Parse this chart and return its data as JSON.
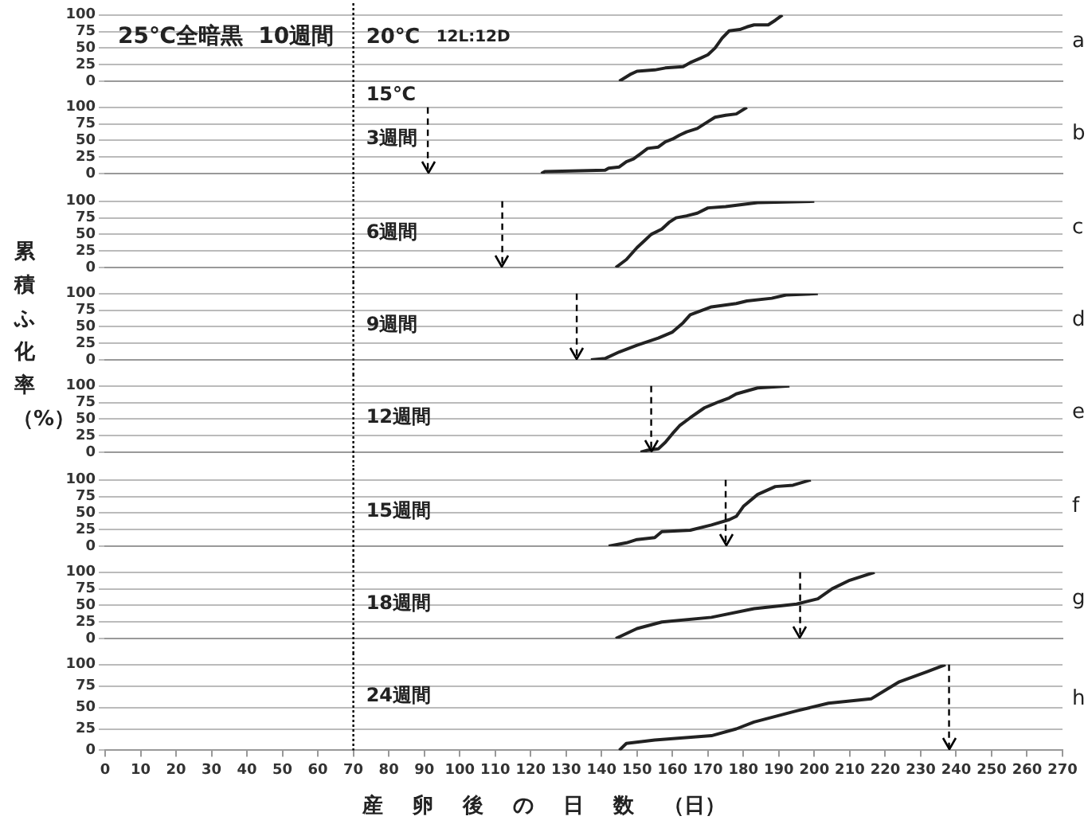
{
  "chart_data": [
    {
      "type": "line",
      "title": "25℃全暗黒  10週間",
      "x": [
        145,
        148,
        150,
        155,
        158,
        163,
        165,
        168,
        170,
        172,
        174,
        176,
        179,
        181,
        183,
        187,
        189,
        191
      ],
      "series": [
        {
          "color": "#222222",
          "values": [
            0,
            10,
            15,
            17,
            20,
            22,
            28,
            35,
            40,
            50,
            65,
            76,
            78,
            82,
            85,
            85,
            92,
            100
          ]
        }
      ],
      "xlim": [
        0,
        270
      ],
      "ylim": [
        0,
        100
      ],
      "xticks": [
        0,
        10,
        20,
        30,
        40,
        50,
        60,
        70,
        80,
        90,
        100,
        110,
        120,
        130,
        140,
        150,
        160,
        170,
        180,
        190,
        200,
        210,
        220,
        230,
        240,
        250,
        260,
        270
      ],
      "yticks": [
        0,
        25,
        50,
        75,
        100
      ],
      "grid": "y",
      "tick_labels": "y",
      "ref_lines": [
        {
          "axis": "x",
          "value": 70,
          "line_style": "dotted"
        }
      ],
      "annotations": [
        "20℃",
        "12L:12D",
        "15℃",
        "a"
      ]
    },
    {
      "type": "line",
      "x": [
        123,
        124,
        141,
        142,
        145,
        147,
        149,
        151,
        153,
        156,
        158,
        160,
        162,
        164,
        167,
        169,
        172,
        175,
        178,
        181
      ],
      "series": [
        {
          "color": "#222222",
          "values": [
            0,
            3,
            5,
            8,
            10,
            18,
            22,
            30,
            38,
            40,
            48,
            52,
            58,
            63,
            68,
            75,
            85,
            88,
            90,
            100
          ]
        }
      ],
      "xlim": [
        0,
        270
      ],
      "ylim": [
        0,
        100
      ],
      "xticks": [
        0,
        10,
        20,
        30,
        40,
        50,
        60,
        70,
        80,
        90,
        100,
        110,
        120,
        130,
        140,
        150,
        160,
        170,
        180,
        190,
        200,
        210,
        220,
        230,
        240,
        250,
        260,
        270
      ],
      "yticks": [
        0,
        25,
        50,
        75,
        100
      ],
      "grid": "y",
      "tick_labels": "y",
      "ref_lines": [
        {
          "axis": "x",
          "value": 70,
          "line_style": "dotted"
        },
        {
          "axis": "x",
          "value": 91,
          "line_style": "dashed"
        }
      ],
      "annotations": [
        "3週間",
        "b"
      ]
    },
    {
      "type": "line",
      "x": [
        144,
        147,
        150,
        152,
        154,
        157,
        159,
        161,
        164,
        167,
        170,
        175,
        184,
        200
      ],
      "series": [
        {
          "color": "#222222",
          "values": [
            0,
            12,
            30,
            40,
            50,
            58,
            68,
            75,
            78,
            82,
            90,
            92,
            98,
            100
          ]
        }
      ],
      "xlim": [
        0,
        270
      ],
      "ylim": [
        0,
        100
      ],
      "xticks": [
        0,
        10,
        20,
        30,
        40,
        50,
        60,
        70,
        80,
        90,
        100,
        110,
        120,
        130,
        140,
        150,
        160,
        170,
        180,
        190,
        200,
        210,
        220,
        230,
        240,
        250,
        260,
        270
      ],
      "yticks": [
        0,
        25,
        50,
        75,
        100
      ],
      "grid": "y",
      "tick_labels": "y",
      "ref_lines": [
        {
          "axis": "x",
          "value": 70,
          "line_style": "dotted"
        },
        {
          "axis": "x",
          "value": 112,
          "line_style": "dashed"
        }
      ],
      "annotations": [
        "6週間",
        "c"
      ]
    },
    {
      "type": "line",
      "ylabel": "累積ふ化率（%）",
      "x": [
        137,
        141,
        145,
        150,
        156,
        160,
        163,
        165,
        171,
        178,
        181,
        188,
        192,
        201
      ],
      "series": [
        {
          "color": "#222222",
          "values": [
            0,
            2,
            12,
            22,
            33,
            42,
            56,
            68,
            80,
            85,
            89,
            93,
            98,
            100
          ]
        }
      ],
      "xlim": [
        0,
        270
      ],
      "ylim": [
        0,
        100
      ],
      "xticks": [
        0,
        10,
        20,
        30,
        40,
        50,
        60,
        70,
        80,
        90,
        100,
        110,
        120,
        130,
        140,
        150,
        160,
        170,
        180,
        190,
        200,
        210,
        220,
        230,
        240,
        250,
        260,
        270
      ],
      "yticks": [
        0,
        25,
        50,
        75,
        100
      ],
      "grid": "y",
      "tick_labels": "y",
      "ref_lines": [
        {
          "axis": "x",
          "value": 70,
          "line_style": "dotted"
        },
        {
          "axis": "x",
          "value": 133,
          "line_style": "dashed"
        }
      ],
      "annotations": [
        "9週間",
        "d"
      ]
    },
    {
      "type": "line",
      "x": [
        151,
        153,
        156,
        158,
        160,
        162,
        165,
        169,
        173,
        176,
        178,
        184,
        193
      ],
      "series": [
        {
          "color": "#222222",
          "values": [
            0,
            3,
            5,
            15,
            28,
            40,
            52,
            67,
            76,
            82,
            88,
            97,
            100
          ]
        }
      ],
      "xlim": [
        0,
        270
      ],
      "ylim": [
        0,
        100
      ],
      "xticks": [
        0,
        10,
        20,
        30,
        40,
        50,
        60,
        70,
        80,
        90,
        100,
        110,
        120,
        130,
        140,
        150,
        160,
        170,
        180,
        190,
        200,
        210,
        220,
        230,
        240,
        250,
        260,
        270
      ],
      "yticks": [
        0,
        25,
        50,
        75,
        100
      ],
      "grid": "y",
      "tick_labels": "y",
      "ref_lines": [
        {
          "axis": "x",
          "value": 70,
          "line_style": "dotted"
        },
        {
          "axis": "x",
          "value": 154,
          "line_style": "dashed"
        }
      ],
      "annotations": [
        "12週間",
        "e"
      ]
    },
    {
      "type": "line",
      "x": [
        142,
        147,
        150,
        155,
        157,
        165,
        171,
        176,
        178,
        180,
        184,
        189,
        194,
        199
      ],
      "series": [
        {
          "color": "#222222",
          "values": [
            0,
            5,
            10,
            13,
            22,
            24,
            32,
            40,
            45,
            60,
            78,
            90,
            92,
            100
          ]
        }
      ],
      "xlim": [
        0,
        270
      ],
      "ylim": [
        0,
        100
      ],
      "xticks": [
        0,
        10,
        20,
        30,
        40,
        50,
        60,
        70,
        80,
        90,
        100,
        110,
        120,
        130,
        140,
        150,
        160,
        170,
        180,
        190,
        200,
        210,
        220,
        230,
        240,
        250,
        260,
        270
      ],
      "yticks": [
        0,
        25,
        50,
        75,
        100
      ],
      "grid": "y",
      "tick_labels": "y",
      "ref_lines": [
        {
          "axis": "x",
          "value": 70,
          "line_style": "dotted"
        },
        {
          "axis": "x",
          "value": 175,
          "line_style": "dashed"
        }
      ],
      "annotations": [
        "15週間",
        "f"
      ]
    },
    {
      "type": "line",
      "x": [
        144,
        150,
        157,
        171,
        183,
        195,
        201,
        205,
        210,
        217
      ],
      "series": [
        {
          "color": "#222222",
          "values": [
            0,
            15,
            25,
            32,
            45,
            52,
            60,
            75,
            88,
            100
          ]
        }
      ],
      "xlim": [
        0,
        270
      ],
      "ylim": [
        0,
        100
      ],
      "xticks": [
        0,
        10,
        20,
        30,
        40,
        50,
        60,
        70,
        80,
        90,
        100,
        110,
        120,
        130,
        140,
        150,
        160,
        170,
        180,
        190,
        200,
        210,
        220,
        230,
        240,
        250,
        260,
        270
      ],
      "yticks": [
        0,
        25,
        50,
        75,
        100
      ],
      "grid": "y",
      "tick_labels": "y",
      "ref_lines": [
        {
          "axis": "x",
          "value": 70,
          "line_style": "dotted"
        },
        {
          "axis": "x",
          "value": 196,
          "line_style": "dashed"
        }
      ],
      "annotations": [
        "18週間",
        "g"
      ]
    },
    {
      "type": "line",
      "xlabel": "産 卵 後 の 日 数 （日）",
      "x": [
        145,
        147,
        155,
        171,
        178,
        183,
        195,
        204,
        216,
        220,
        224,
        232,
        237
      ],
      "series": [
        {
          "color": "#222222",
          "values": [
            0,
            8,
            12,
            17,
            25,
            33,
            46,
            55,
            60,
            70,
            80,
            92,
            100
          ]
        }
      ],
      "xlim": [
        0,
        270
      ],
      "ylim": [
        0,
        100
      ],
      "xticks": [
        0,
        10,
        20,
        30,
        40,
        50,
        60,
        70,
        80,
        90,
        100,
        110,
        120,
        130,
        140,
        150,
        160,
        170,
        180,
        190,
        200,
        210,
        220,
        230,
        240,
        250,
        260,
        270
      ],
      "yticks": [
        0,
        25,
        50,
        75,
        100
      ],
      "grid": "y",
      "ref_lines": [
        {
          "axis": "x",
          "value": 70,
          "line_style": "dotted"
        },
        {
          "axis": "x",
          "value": 238,
          "line_style": "dashed"
        }
      ],
      "annotations": [
        "24週間",
        "h"
      ]
    }
  ]
}
